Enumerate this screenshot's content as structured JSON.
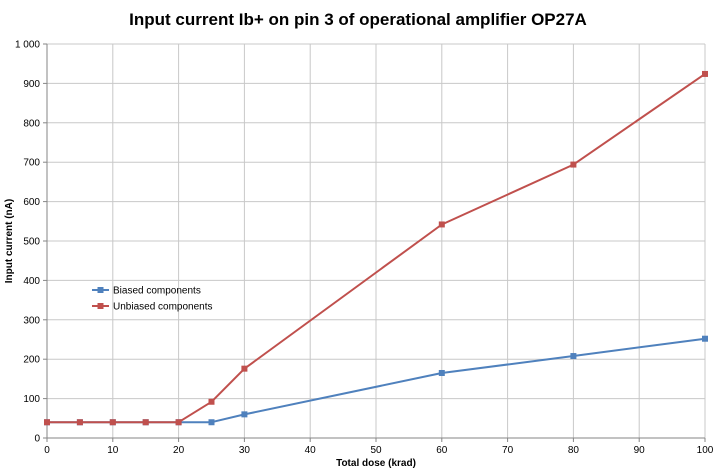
{
  "chart_data": {
    "type": "line",
    "title": "Input current Ib+ on pin 3 of operational amplifier OP27A",
    "xlabel": "Total dose (krad)",
    "ylabel": "Input current (nA)",
    "xlim": [
      0,
      100
    ],
    "ylim": [
      0,
      1000
    ],
    "x_ticks": [
      0,
      10,
      20,
      30,
      40,
      50,
      60,
      70,
      80,
      90,
      100
    ],
    "x_tick_labels": [
      "0",
      "10",
      "20",
      "30",
      "40",
      "50",
      "60",
      "70",
      "80",
      "90",
      "100"
    ],
    "y_ticks": [
      0,
      100,
      200,
      300,
      400,
      500,
      600,
      700,
      800,
      900,
      1000
    ],
    "y_tick_labels": [
      "0",
      "100",
      "200",
      "300",
      "400",
      "500",
      "600",
      "700",
      "800",
      "900",
      "1 000"
    ],
    "grid": true,
    "legend_position": "left-middle",
    "series": [
      {
        "name": "Biased components",
        "color": "#4f81bd",
        "x": [
          0,
          5,
          10,
          15,
          20,
          25,
          30,
          60,
          80,
          100
        ],
        "y": [
          40,
          40,
          40,
          40,
          40,
          40,
          60,
          165,
          208,
          252
        ]
      },
      {
        "name": "Unbiased components",
        "color": "#c0504d",
        "x": [
          0,
          5,
          10,
          15,
          20,
          25,
          30,
          60,
          80,
          100
        ],
        "y": [
          40,
          40,
          40,
          40,
          40,
          92,
          176,
          542,
          694,
          924
        ]
      }
    ]
  }
}
